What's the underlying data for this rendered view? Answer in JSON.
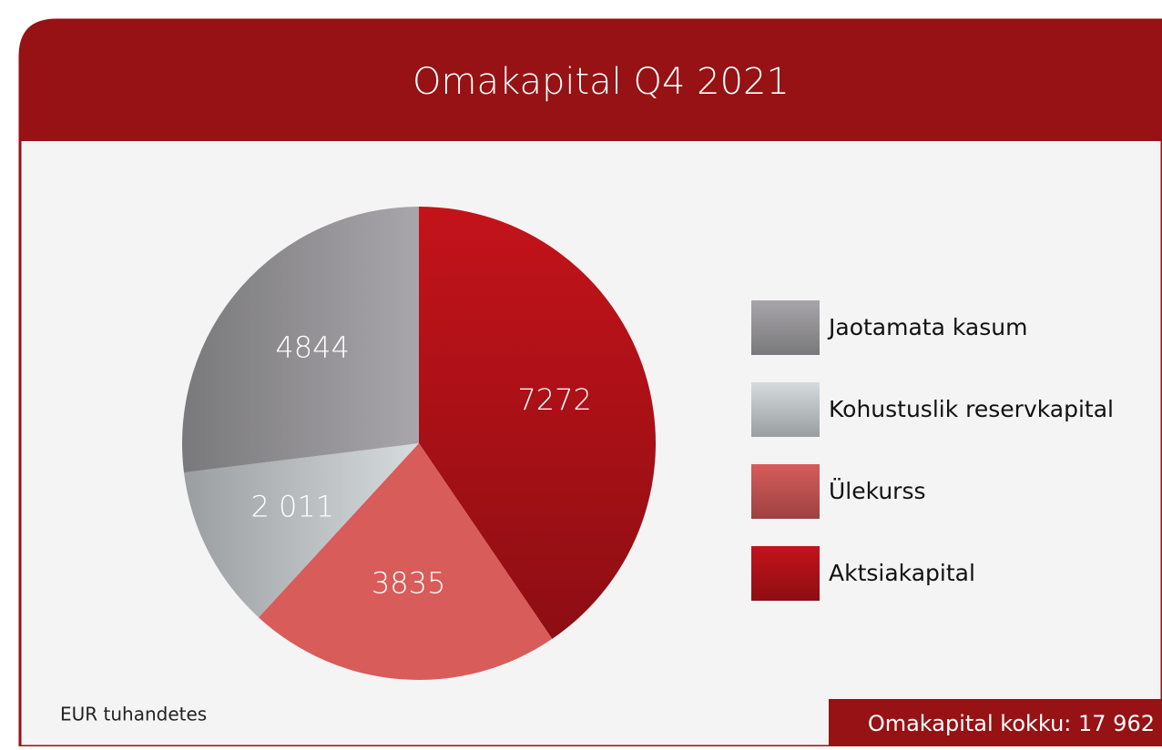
{
  "chart_data": {
    "type": "pie",
    "title": "Omakapital Q4 2021",
    "categories": [
      "Aktsiakapital",
      "Ülekurss",
      "Kohustuslik reservkapital",
      "Jaotamata kasum"
    ],
    "values": [
      7272,
      3835,
      2011,
      4844
    ],
    "value_labels": [
      "7272",
      "3835",
      "2 011",
      "4844"
    ],
    "colors": [
      "#c4131a",
      "#d85c5a",
      "#d6dbde",
      "#a8a6aa"
    ],
    "unit_note": "EUR tuhandetes",
    "total_label": "Omakapital kokku: 17 962"
  }
}
